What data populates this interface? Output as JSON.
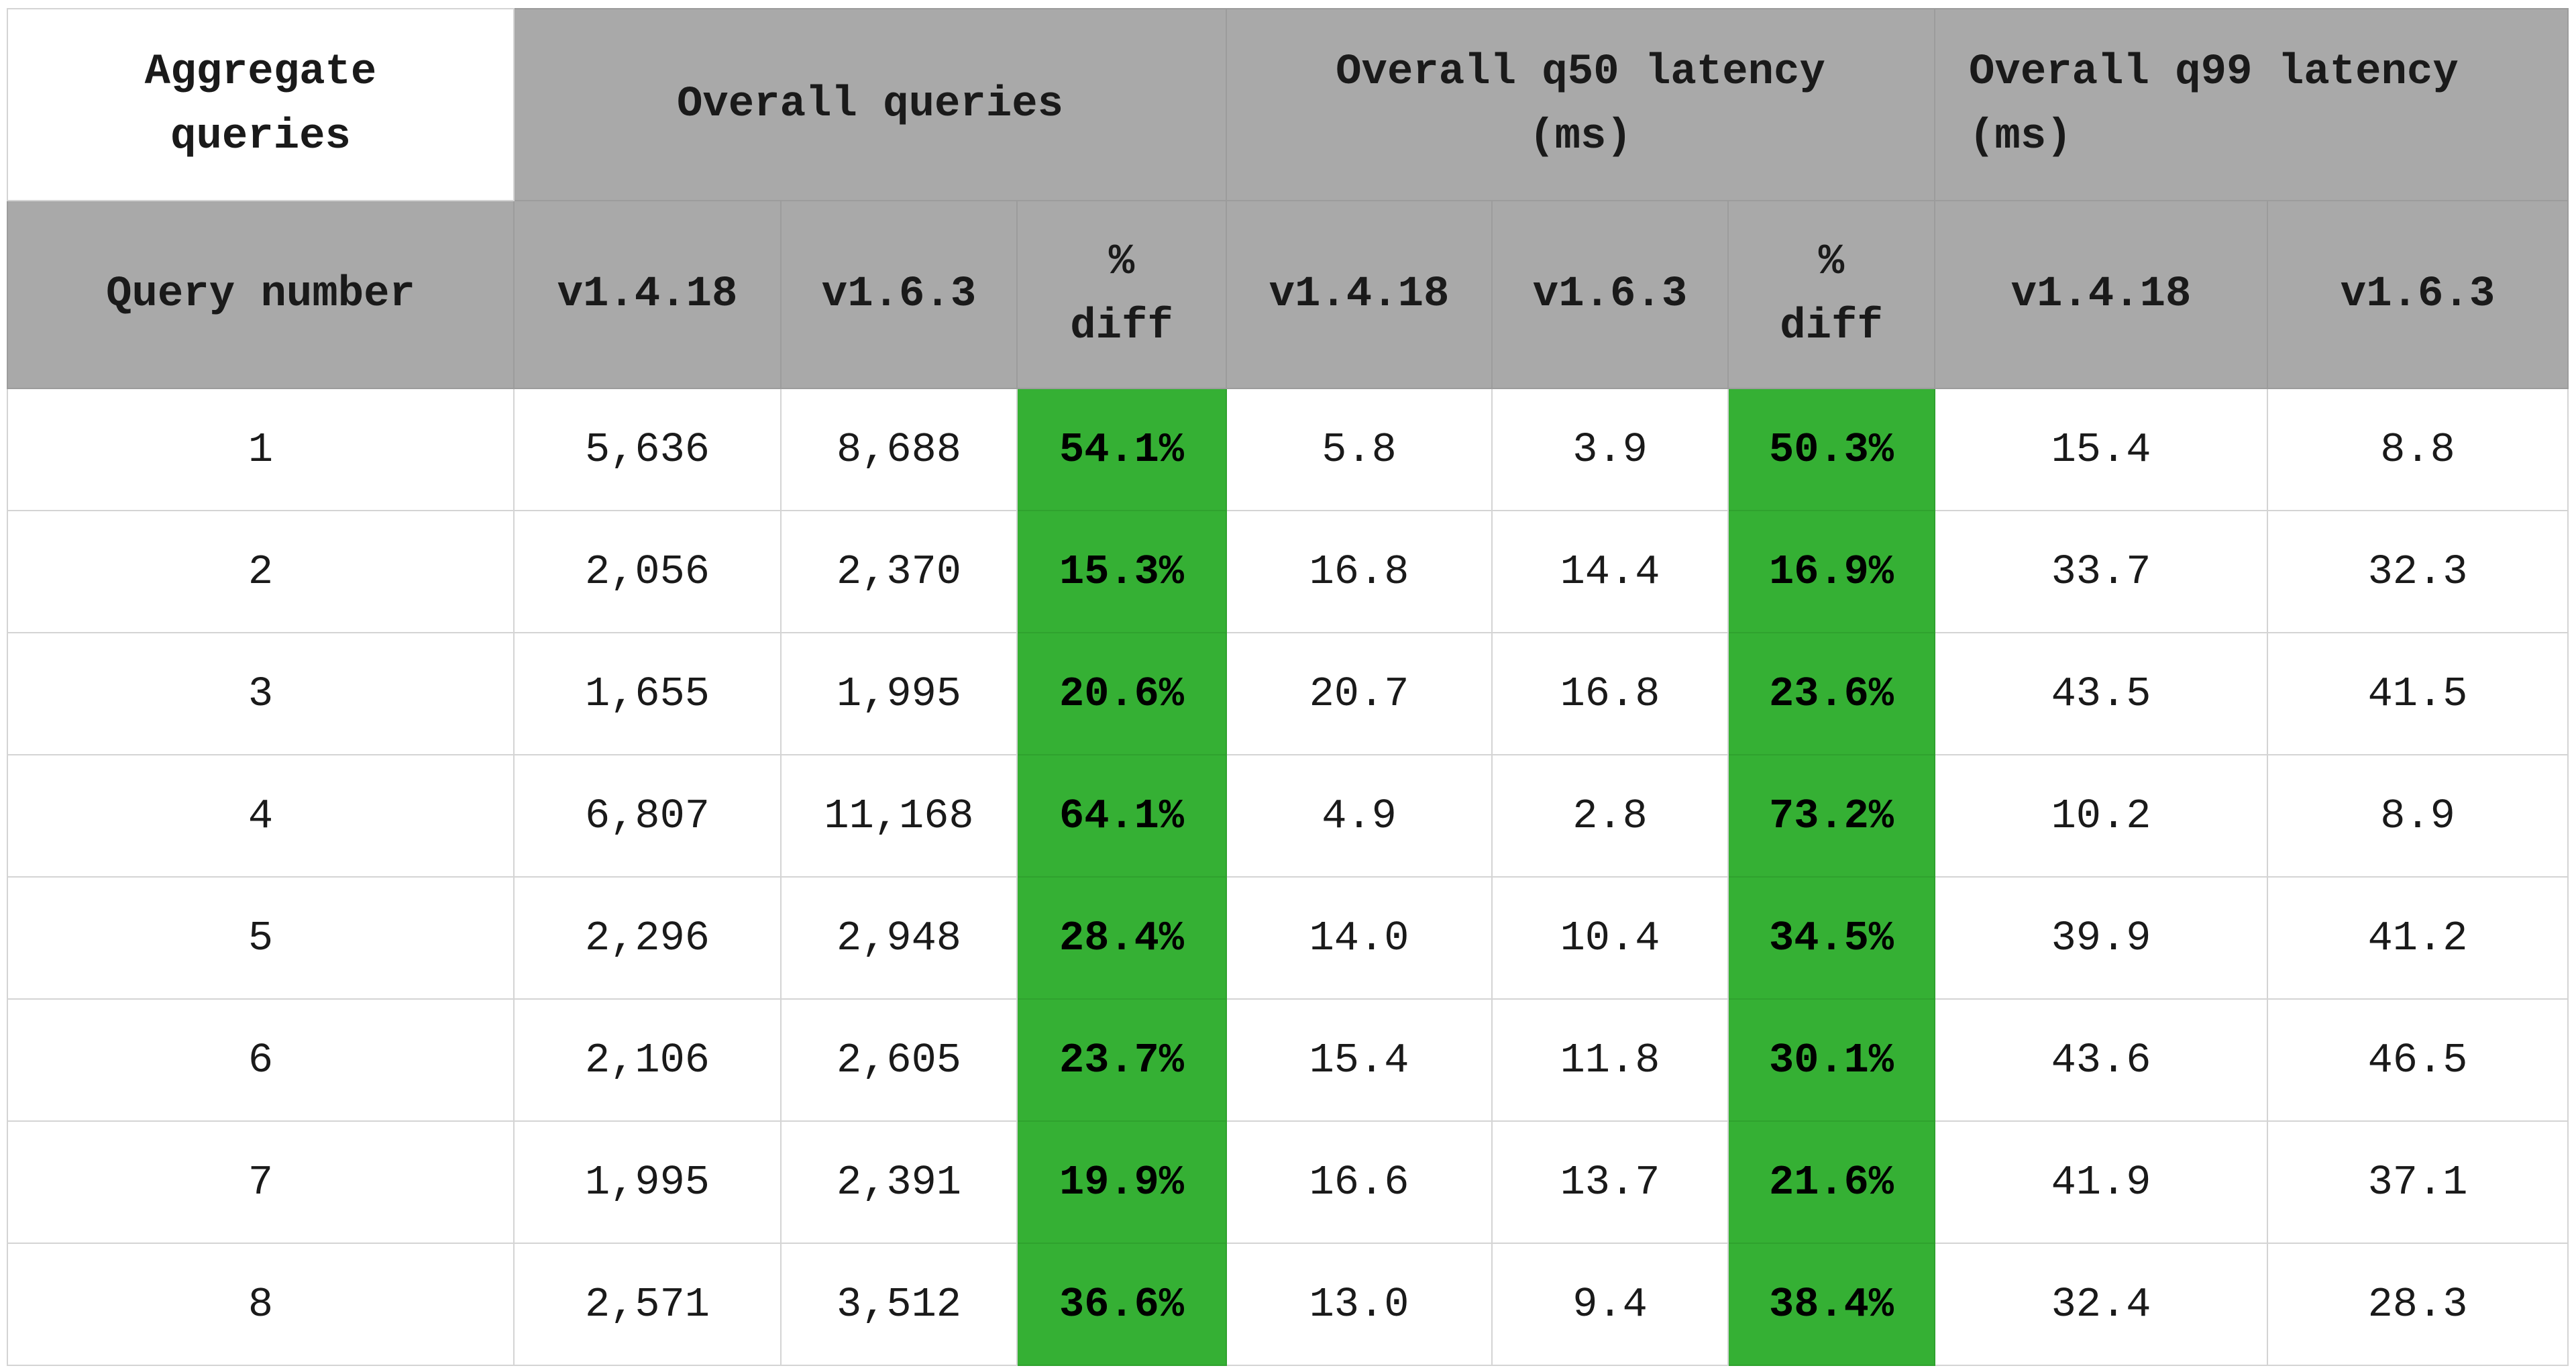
{
  "table": {
    "corner_header": "Aggregate\nqueries",
    "groups": [
      {
        "label": "Overall queries"
      },
      {
        "label": "Overall q50 latency\n(ms)"
      },
      {
        "label": "Overall q99 latency\n(ms)"
      }
    ],
    "subheaders": {
      "query_number": "Query number",
      "v_old": "v1.4.18",
      "v_new": "v1.6.3",
      "diff": "%\ndiff"
    },
    "rows": [
      {
        "query": "1",
        "queries_old": "5,636",
        "queries_new": "8,688",
        "queries_diff": "54.1%",
        "q50_old": "5.8",
        "q50_new": "3.9",
        "q50_diff": "50.3%",
        "q99_old": "15.4",
        "q99_new": "8.8"
      },
      {
        "query": "2",
        "queries_old": "2,056",
        "queries_new": "2,370",
        "queries_diff": "15.3%",
        "q50_old": "16.8",
        "q50_new": "14.4",
        "q50_diff": "16.9%",
        "q99_old": "33.7",
        "q99_new": "32.3"
      },
      {
        "query": "3",
        "queries_old": "1,655",
        "queries_new": "1,995",
        "queries_diff": "20.6%",
        "q50_old": "20.7",
        "q50_new": "16.8",
        "q50_diff": "23.6%",
        "q99_old": "43.5",
        "q99_new": "41.5"
      },
      {
        "query": "4",
        "queries_old": "6,807",
        "queries_new": "11,168",
        "queries_diff": "64.1%",
        "q50_old": "4.9",
        "q50_new": "2.8",
        "q50_diff": "73.2%",
        "q99_old": "10.2",
        "q99_new": "8.9"
      },
      {
        "query": "5",
        "queries_old": "2,296",
        "queries_new": "2,948",
        "queries_diff": "28.4%",
        "q50_old": "14.0",
        "q50_new": "10.4",
        "q50_diff": "34.5%",
        "q99_old": "39.9",
        "q99_new": "41.2"
      },
      {
        "query": "6",
        "queries_old": "2,106",
        "queries_new": "2,605",
        "queries_diff": "23.7%",
        "q50_old": "15.4",
        "q50_new": "11.8",
        "q50_diff": "30.1%",
        "q99_old": "43.6",
        "q99_new": "46.5"
      },
      {
        "query": "7",
        "queries_old": "1,995",
        "queries_new": "2,391",
        "queries_diff": "19.9%",
        "q50_old": "16.6",
        "q50_new": "13.7",
        "q50_diff": "21.6%",
        "q99_old": "41.9",
        "q99_new": "37.1"
      },
      {
        "query": "8",
        "queries_old": "2,571",
        "queries_new": "3,512",
        "queries_diff": "36.6%",
        "q50_old": "13.0",
        "q50_new": "9.4",
        "q50_diff": "38.4%",
        "q99_old": "32.4",
        "q99_new": "28.3"
      }
    ],
    "colors": {
      "header_bg": "#a9a9a9",
      "diff_highlight": "#35b034",
      "cell_bg": "#ffffff"
    }
  }
}
